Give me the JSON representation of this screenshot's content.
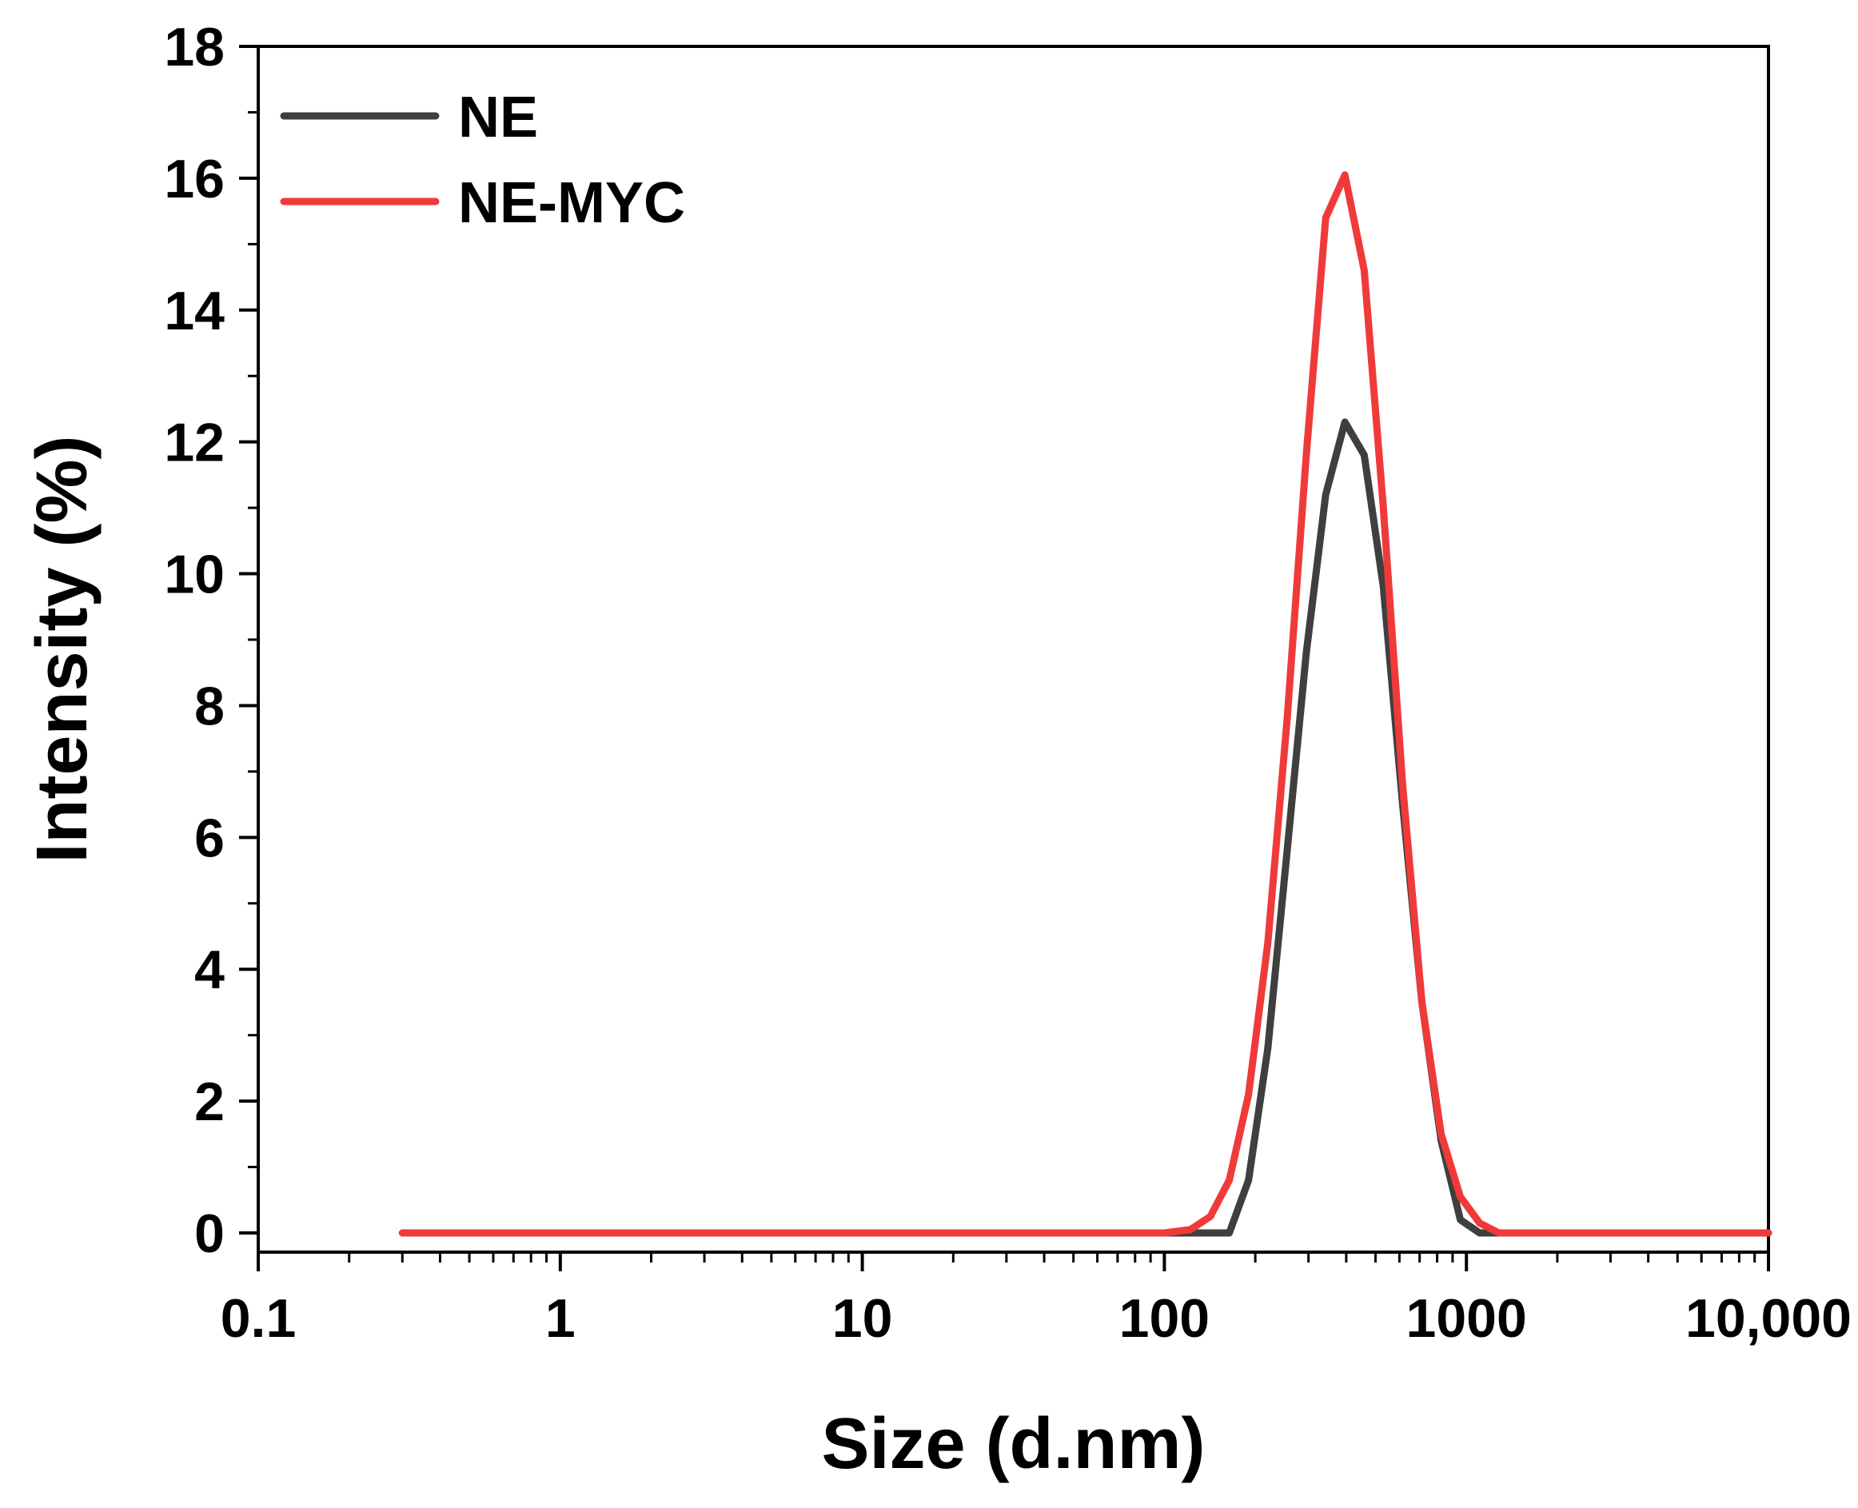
{
  "chart_data": {
    "type": "line",
    "title": "",
    "xlabel": "Size (d.nm)",
    "ylabel": "Intensity (%)",
    "xscale": "log",
    "xlim": [
      0.1,
      10000
    ],
    "ylim": [
      0,
      18
    ],
    "x_ticks": [
      {
        "value": 0.1,
        "label": "0.1"
      },
      {
        "value": 1,
        "label": "1"
      },
      {
        "value": 10,
        "label": "10"
      },
      {
        "value": 100,
        "label": "100"
      },
      {
        "value": 1000,
        "label": "1000"
      },
      {
        "value": 10000,
        "label": "10,000"
      }
    ],
    "y_ticks": [
      {
        "value": 0,
        "label": "0"
      },
      {
        "value": 2,
        "label": "2"
      },
      {
        "value": 4,
        "label": "4"
      },
      {
        "value": 6,
        "label": "6"
      },
      {
        "value": 8,
        "label": "8"
      },
      {
        "value": 10,
        "label": "10"
      },
      {
        "value": 12,
        "label": "12"
      },
      {
        "value": 14,
        "label": "14"
      },
      {
        "value": 16,
        "label": "16"
      },
      {
        "value": 18,
        "label": "18"
      }
    ],
    "legend_position": "top-left",
    "grid": false,
    "series": [
      {
        "name": "NE",
        "color": "#3f3f3f",
        "x": [
          0.3,
          1,
          10,
          100,
          122,
          142,
          164,
          190,
          220,
          255,
          295,
          342,
          396,
          459,
          531,
          615,
          712,
          825,
          955,
          1106,
          1281,
          1484,
          2000,
          5000,
          10000
        ],
        "y": [
          0,
          0,
          0,
          0,
          0,
          0,
          0,
          0.8,
          2.8,
          5.8,
          8.8,
          11.2,
          12.3,
          11.8,
          9.8,
          6.5,
          3.5,
          1.4,
          0.2,
          0,
          0,
          0,
          0,
          0,
          0
        ]
      },
      {
        "name": "NE-MYC",
        "color": "#f03a3a",
        "x": [
          0.3,
          1,
          10,
          100,
          122,
          142,
          164,
          190,
          220,
          255,
          295,
          342,
          396,
          459,
          531,
          615,
          712,
          825,
          955,
          1106,
          1281,
          1484,
          2000,
          5000,
          10000
        ],
        "y": [
          0,
          0,
          0,
          0,
          0.05,
          0.25,
          0.8,
          2.1,
          4.4,
          7.8,
          11.8,
          15.4,
          16.05,
          14.6,
          11.0,
          6.8,
          3.5,
          1.5,
          0.55,
          0.15,
          0,
          0,
          0,
          0,
          0
        ]
      }
    ]
  }
}
